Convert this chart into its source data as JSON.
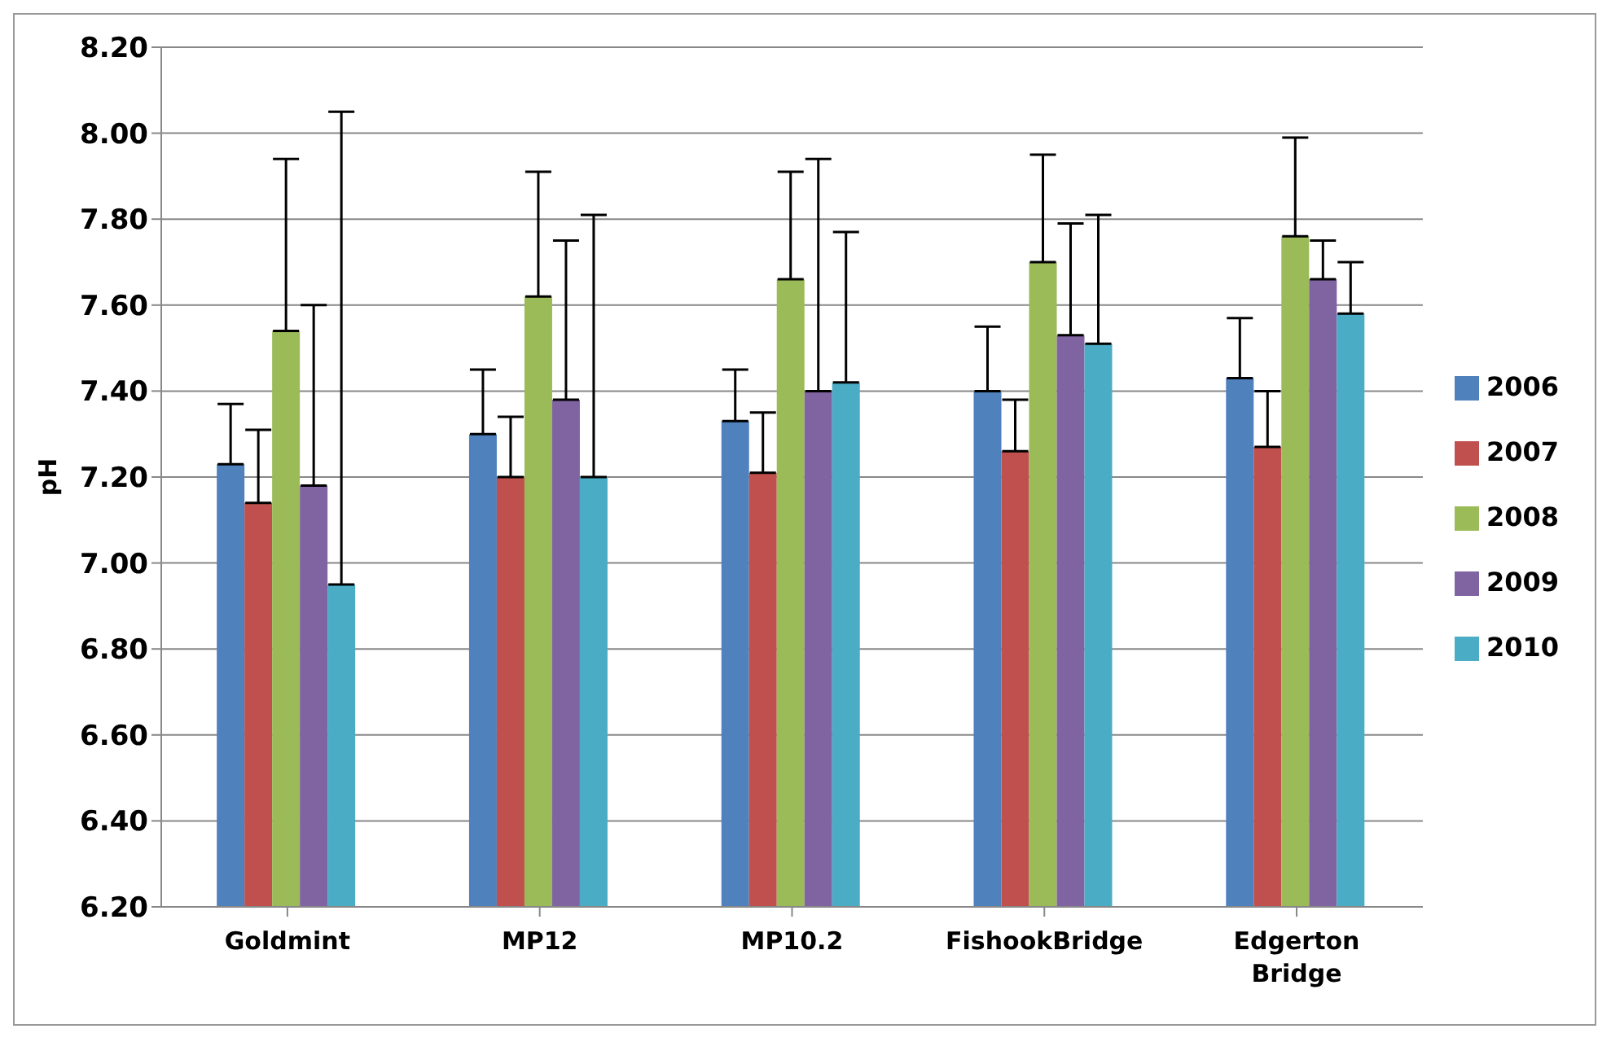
{
  "chart_data": {
    "type": "bar",
    "ylabel": "pH",
    "categories": [
      "Goldmint",
      "MP12",
      "MP10.2",
      "FishookBridge",
      "Edgerton Bridge"
    ],
    "series": [
      {
        "name": "2006",
        "color": "#4f81bd",
        "values": [
          7.23,
          7.3,
          7.33,
          7.4,
          7.43
        ],
        "errors": [
          [
            7.23,
            7.37
          ],
          [
            7.3,
            7.45
          ],
          [
            7.33,
            7.45
          ],
          [
            7.4,
            7.55
          ],
          [
            7.43,
            7.57
          ]
        ]
      },
      {
        "name": "2007",
        "color": "#c0504d",
        "values": [
          7.14,
          7.2,
          7.21,
          7.26,
          7.27
        ],
        "errors": [
          [
            7.14,
            7.31
          ],
          [
            7.2,
            7.34
          ],
          [
            7.21,
            7.35
          ],
          [
            7.26,
            7.38
          ],
          [
            7.27,
            7.4
          ]
        ]
      },
      {
        "name": "2008",
        "color": "#9bbb59",
        "values": [
          7.54,
          7.62,
          7.66,
          7.7,
          7.76
        ],
        "errors": [
          [
            7.54,
            7.94
          ],
          [
            7.62,
            7.91
          ],
          [
            7.66,
            7.91
          ],
          [
            7.7,
            7.95
          ],
          [
            7.76,
            7.99
          ]
        ]
      },
      {
        "name": "2009",
        "color": "#8064a2",
        "values": [
          7.18,
          7.38,
          7.4,
          7.53,
          7.66
        ],
        "errors": [
          [
            7.18,
            7.6
          ],
          [
            7.38,
            7.75
          ],
          [
            7.4,
            7.94
          ],
          [
            7.53,
            7.79
          ],
          [
            7.66,
            7.75
          ]
        ]
      },
      {
        "name": "2010",
        "color": "#4bacc6",
        "values": [
          6.95,
          7.2,
          7.42,
          7.51,
          7.58
        ],
        "errors": [
          [
            6.95,
            8.05
          ],
          [
            7.2,
            7.81
          ],
          [
            7.42,
            7.77
          ],
          [
            7.51,
            7.81
          ],
          [
            7.58,
            7.7
          ]
        ]
      }
    ],
    "ylim": [
      6.2,
      8.2
    ],
    "yticks": [
      {
        "value": 6.2,
        "label": "6.20"
      },
      {
        "value": 6.4,
        "label": "6.40"
      },
      {
        "value": 6.6,
        "label": "6.60"
      },
      {
        "value": 6.8,
        "label": "6.80"
      },
      {
        "value": 7.0,
        "label": "7.00"
      },
      {
        "value": 7.2,
        "label": "7.20"
      },
      {
        "value": 7.4,
        "label": "7.40"
      },
      {
        "value": 7.6,
        "label": "7.60"
      },
      {
        "value": 7.8,
        "label": "7.80"
      },
      {
        "value": 8.0,
        "label": "8.00"
      },
      {
        "value": 8.2,
        "label": "8.20"
      }
    ],
    "grid": "y",
    "legend": "right"
  }
}
